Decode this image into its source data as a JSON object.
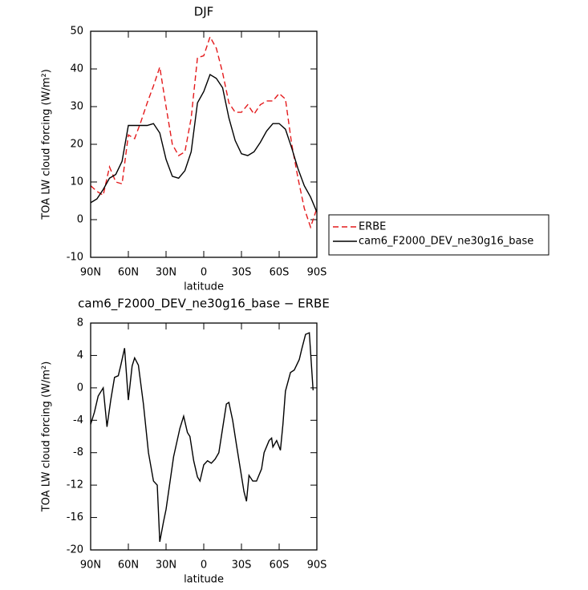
{
  "chart_data": [
    {
      "type": "line",
      "title": "DJF",
      "xlabel": "latitude",
      "ylabel": "TOA LW cloud forcing (W/m²)",
      "x": [
        90,
        85,
        80,
        75,
        70,
        65,
        60,
        55,
        50,
        45,
        40,
        35,
        30,
        25,
        20,
        15,
        10,
        5,
        0,
        -5,
        -10,
        -15,
        -20,
        -25,
        -30,
        -35,
        -40,
        -45,
        -50,
        -55,
        -60,
        -65,
        -70,
        -75,
        -80,
        -85,
        -90
      ],
      "xlim": [
        90,
        -90
      ],
      "xticks": [
        {
          "value": 90,
          "label": "90N"
        },
        {
          "value": 60,
          "label": "60N"
        },
        {
          "value": 30,
          "label": "30N"
        },
        0,
        {
          "value": -30,
          "label": "30S"
        },
        {
          "value": -60,
          "label": "60S"
        },
        {
          "value": -90,
          "label": "90S"
        }
      ],
      "ylim": [
        -10,
        50
      ],
      "yticks": [
        -10,
        0,
        10,
        20,
        30,
        40,
        50
      ],
      "legend": "right",
      "series": [
        {
          "name": "ERBE",
          "color": "#e41a1c",
          "line_style": "dashed",
          "values": [
            9,
            7.5,
            6.5,
            14,
            10,
            9.5,
            22.5,
            21.5,
            26,
            31,
            35.5,
            40.5,
            30,
            20,
            17,
            18,
            27,
            43,
            43.5,
            48.5,
            45.5,
            39,
            31,
            28.5,
            28.5,
            30.5,
            28,
            30.5,
            31.5,
            31.5,
            33.5,
            32,
            20,
            11,
            3,
            -2,
            3
          ]
        },
        {
          "name": "cam6_F2000_DEV_ne30g16_base",
          "color": "#000000",
          "line_style": "solid",
          "values": [
            4.5,
            5.5,
            8,
            11,
            12,
            15.5,
            25,
            25,
            25,
            25,
            25.5,
            23,
            16,
            11.5,
            11,
            13,
            18,
            31,
            34,
            38.5,
            37.5,
            35,
            27,
            21,
            17.5,
            17,
            18,
            20.5,
            23.5,
            25.5,
            25.5,
            24,
            19,
            13.5,
            9,
            6,
            2
          ]
        }
      ]
    },
    {
      "type": "line",
      "title": "cam6_F2000_DEV_ne30g16_base − ERBE",
      "xlabel": "latitude",
      "ylabel": "TOA LW cloud forcing (W/m²)",
      "x": [
        90,
        87,
        84,
        80,
        77,
        74,
        71,
        68,
        66,
        63,
        60,
        57,
        55,
        52,
        48,
        44,
        40,
        37,
        35,
        32,
        30,
        24,
        19,
        16,
        13,
        11,
        8,
        5,
        3,
        0,
        -3,
        -6,
        -9,
        -12,
        -15,
        -18,
        -20,
        -23,
        -26,
        -32,
        -34,
        -36,
        -39,
        -42,
        -46,
        -48,
        -52,
        -54,
        -55,
        -58,
        -61,
        -63,
        -65,
        -69,
        -72,
        -76,
        -78,
        -81,
        -84,
        -87
      ],
      "xlim": [
        90,
        -90
      ],
      "xticks": [
        {
          "value": 90,
          "label": "90N"
        },
        {
          "value": 60,
          "label": "60N"
        },
        {
          "value": 30,
          "label": "30N"
        },
        0,
        {
          "value": -30,
          "label": "30S"
        },
        {
          "value": -60,
          "label": "60S"
        },
        {
          "value": -90,
          "label": "90S"
        }
      ],
      "ylim": [
        -20,
        8
      ],
      "yticks": [
        -20,
        -16,
        -12,
        -8,
        -4,
        0,
        4,
        8
      ],
      "series": [
        {
          "color": "#000000",
          "line_style": "solid",
          "values": [
            -4.5,
            -3,
            -1,
            0,
            -4.8,
            -1.5,
            1.3,
            1.5,
            2.8,
            4.9,
            -1.5,
            2.7,
            3.7,
            2.8,
            -2,
            -8,
            -11.5,
            -12,
            -19,
            -16.5,
            -15,
            -8.5,
            -5,
            -3.5,
            -5.5,
            -6,
            -9,
            -11,
            -11.5,
            -9.5,
            -9,
            -9.3,
            -8.8,
            -8,
            -5,
            -2,
            -1.8,
            -4,
            -7,
            -12.8,
            -14,
            -10.8,
            -11.5,
            -11.5,
            -10,
            -8,
            -6.5,
            -6.2,
            -7.3,
            -6.5,
            -7.7,
            -4.5,
            -0.4,
            1.9,
            2.2,
            3.5,
            4.8,
            6.6,
            6.8,
            -0.3
          ]
        }
      ]
    }
  ]
}
